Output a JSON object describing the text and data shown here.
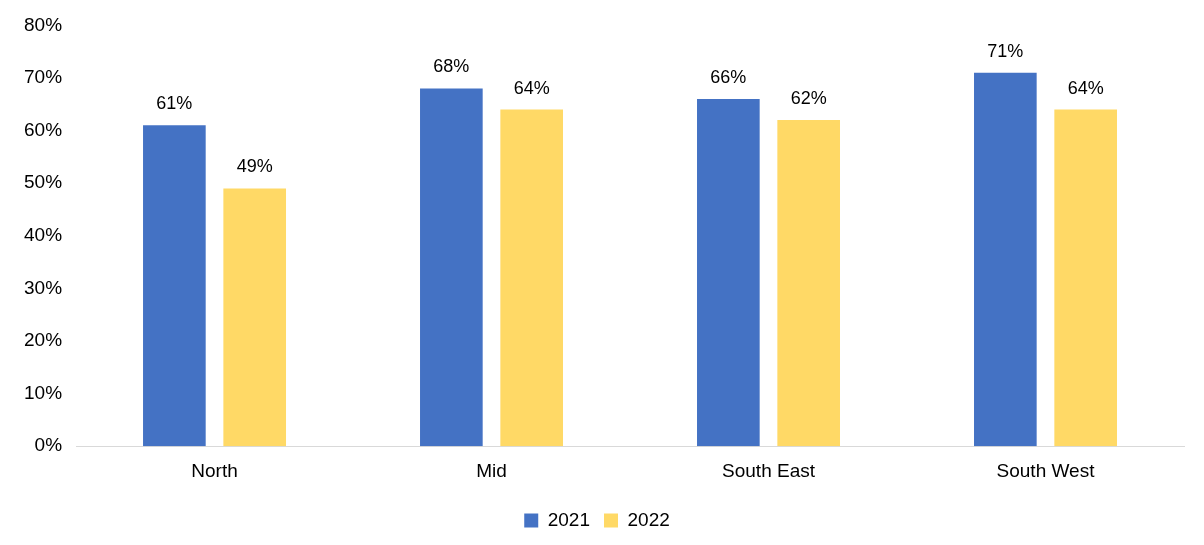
{
  "chart_data": {
    "type": "bar",
    "categories": [
      "North",
      "Mid",
      "South East",
      "South West"
    ],
    "series": [
      {
        "name": "2021",
        "color": "#4472c4",
        "values": [
          61,
          68,
          66,
          71
        ],
        "value_labels": [
          "61%",
          "68%",
          "66%",
          "71%"
        ]
      },
      {
        "name": "2022",
        "color": "#ffd966",
        "values": [
          49,
          64,
          62,
          64
        ],
        "value_labels": [
          "49%",
          "64%",
          "62%",
          "64%"
        ]
      }
    ],
    "ylim": [
      0,
      80
    ],
    "yticks": [
      {
        "value": 0,
        "label": "0%"
      },
      {
        "value": 10,
        "label": "10%"
      },
      {
        "value": 20,
        "label": "20%"
      },
      {
        "value": 30,
        "label": "30%"
      },
      {
        "value": 40,
        "label": "40%"
      },
      {
        "value": 50,
        "label": "50%"
      },
      {
        "value": 60,
        "label": "60%"
      },
      {
        "value": 70,
        "label": "70%"
      },
      {
        "value": 80,
        "label": "80%"
      }
    ],
    "grid": false,
    "legend": "bottom"
  }
}
